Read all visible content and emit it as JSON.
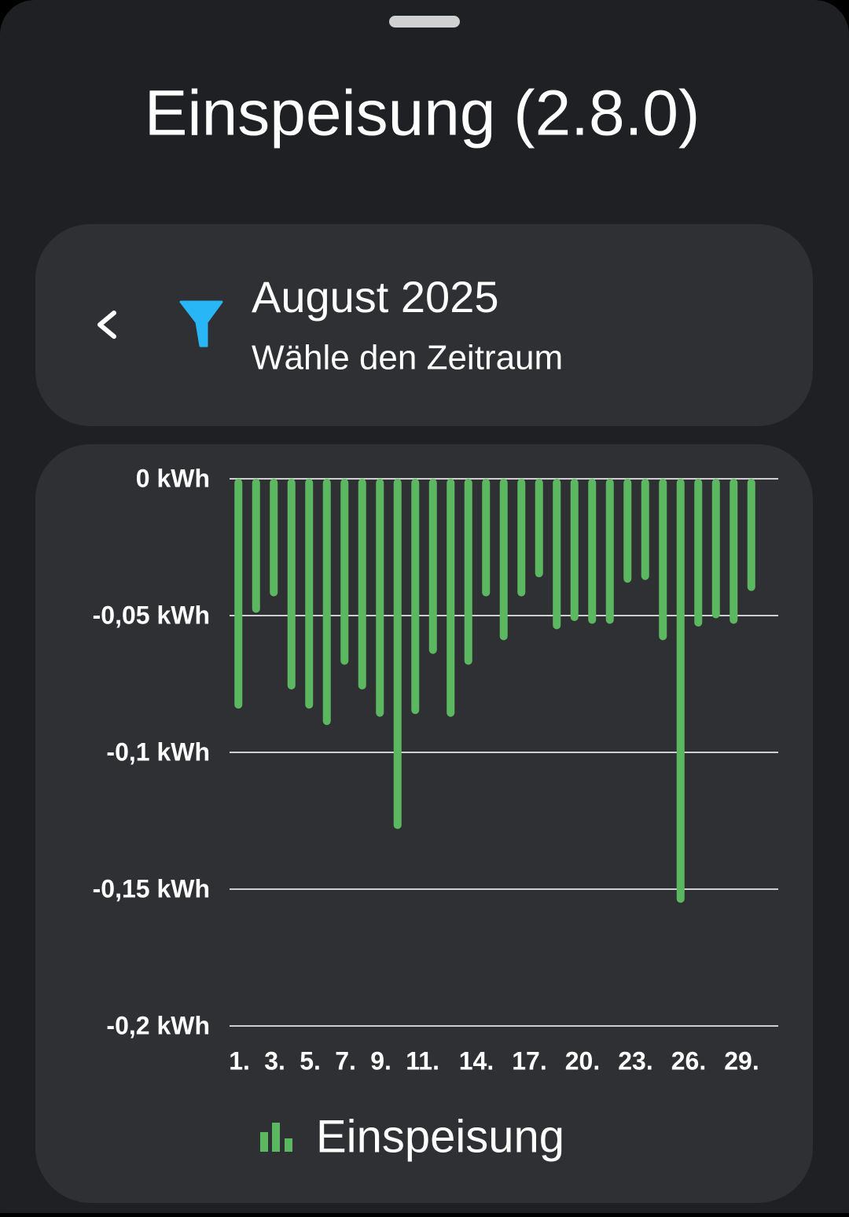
{
  "header": {
    "title": "Einspeisung (2.8.0)"
  },
  "period": {
    "label": "August 2025",
    "hint": "Wähle den Zeitraum"
  },
  "chart_data": {
    "type": "bar",
    "categories": [
      "1.",
      null,
      "3.",
      null,
      "5.",
      null,
      "7.",
      null,
      "9.",
      null,
      "11.",
      null,
      null,
      "14.",
      null,
      null,
      "17.",
      null,
      null,
      "20.",
      null,
      null,
      "23.",
      null,
      null,
      "26.",
      null,
      null,
      "29.",
      null
    ],
    "series": [
      {
        "name": "Einspeisung",
        "color": "#5cb860",
        "values": [
          -0.084,
          -0.049,
          -0.043,
          -0.077,
          -0.084,
          -0.09,
          -0.068,
          -0.077,
          -0.087,
          -0.128,
          -0.086,
          -0.064,
          -0.087,
          -0.068,
          -0.043,
          -0.059,
          -0.043,
          -0.036,
          -0.055,
          -0.052,
          -0.053,
          -0.053,
          -0.038,
          -0.037,
          -0.059,
          -0.155,
          -0.054,
          -0.051,
          -0.053,
          -0.041
        ]
      }
    ],
    "ylim": [
      -0.2,
      0
    ],
    "yticks": [
      {
        "value": 0,
        "label": "0 kWh"
      },
      {
        "value": -0.05,
        "label": "-0,05 kWh"
      },
      {
        "value": -0.1,
        "label": "-0,1 kWh"
      },
      {
        "value": -0.15,
        "label": "-0,15 kWh"
      },
      {
        "value": -0.2,
        "label": "-0,2 kWh"
      }
    ],
    "grid": true
  }
}
